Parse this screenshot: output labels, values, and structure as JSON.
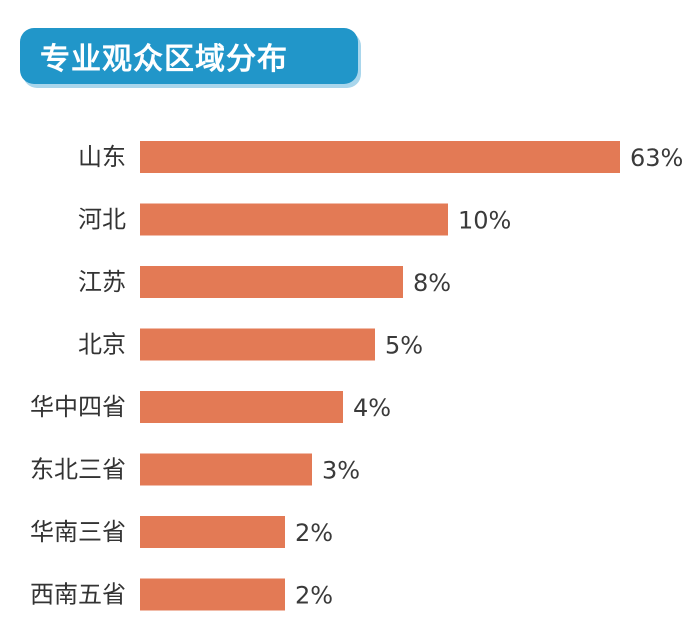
{
  "title": "专业观众区域分布",
  "colors": {
    "title_bg": "#2196c9",
    "bar": "#e37a55"
  },
  "chart_data": {
    "type": "bar",
    "orientation": "horizontal",
    "title": "专业观众区域分布",
    "categories": [
      "山东",
      "河北",
      "江苏",
      "北京",
      "华中四省",
      "东北三省",
      "华南三省",
      "西南五省"
    ],
    "values": [
      63,
      10,
      8,
      5,
      4,
      3,
      2,
      2
    ],
    "value_labels": [
      "63%",
      "10%",
      "8%",
      "5%",
      "4%",
      "3%",
      "2%",
      "2%"
    ],
    "unit": "%",
    "grid": false,
    "legend": "none"
  }
}
